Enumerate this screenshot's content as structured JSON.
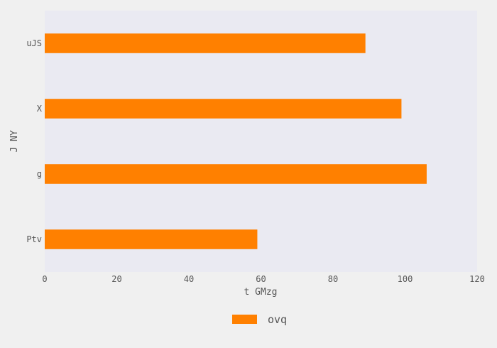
{
  "chart_data": {
    "type": "bar",
    "orientation": "horizontal",
    "title": "",
    "xlabel": "t GMzg",
    "ylabel": "J NY",
    "categories": [
      "uJS",
      "X",
      "g",
      "Ptv"
    ],
    "series": [
      {
        "name": "ovq",
        "values": [
          89,
          99,
          106,
          59
        ]
      }
    ],
    "xlim": [
      0,
      120
    ],
    "xticks": [
      "0",
      "20",
      "40",
      "60",
      "80",
      "100",
      "120"
    ],
    "grid": false,
    "legend_position": "bottom-center",
    "colors": {
      "bar": "#ff8000",
      "plot_background": "#eaeaf2",
      "figure_background": "#f0f0f0",
      "text": "#555555"
    }
  }
}
